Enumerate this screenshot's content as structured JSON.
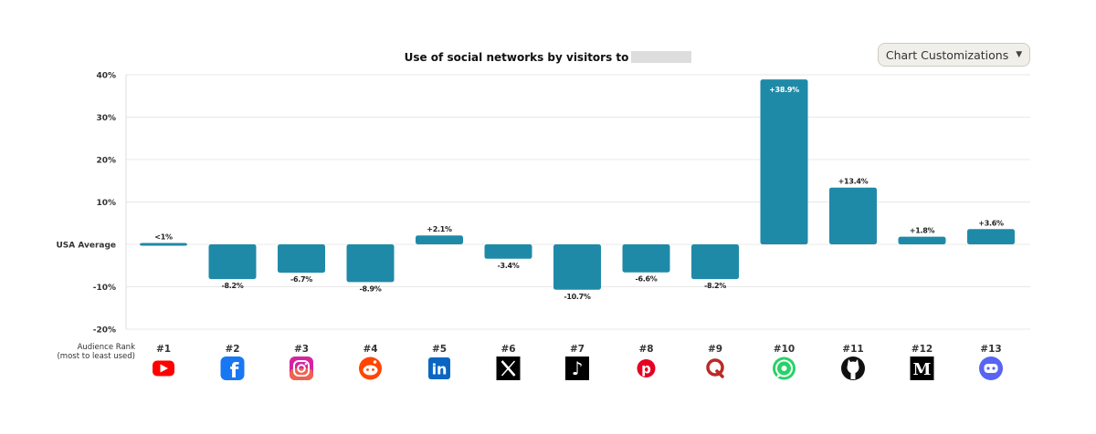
{
  "title": "Use of social networks by visitors to",
  "controls": {
    "customize_label": "Chart Customizations"
  },
  "rank_legend": {
    "line1": "Audience Rank",
    "line2": "(most to least used)"
  },
  "colors": {
    "bar": "#1f8aa8",
    "grid": "#e8e8e8",
    "text": "#222222"
  },
  "chart_data": {
    "type": "bar",
    "title": "Use of social networks by visitors to",
    "y_ticks": [
      {
        "value": 40,
        "label": "40%"
      },
      {
        "value": 30,
        "label": "30%"
      },
      {
        "value": 20,
        "label": "20%"
      },
      {
        "value": 10,
        "label": "10%"
      },
      {
        "value": 0,
        "label": "USA Average"
      },
      {
        "value": -10,
        "label": "-10%"
      },
      {
        "value": -20,
        "label": "-20%"
      }
    ],
    "ylim": [
      -20,
      40
    ],
    "grid": true,
    "categories": [
      "#1",
      "#2",
      "#3",
      "#4",
      "#5",
      "#6",
      "#7",
      "#8",
      "#9",
      "#10",
      "#11",
      "#12",
      "#13"
    ],
    "icons": [
      "youtube-icon",
      "facebook-icon",
      "instagram-icon",
      "reddit-icon",
      "linkedin-icon",
      "x-icon",
      "tiktok-icon",
      "pinterest-icon",
      "quora-icon",
      "whatsapp-icon",
      "github-icon",
      "medium-icon",
      "discord-icon"
    ],
    "values": [
      0.5,
      -8.2,
      -6.7,
      -8.9,
      2.1,
      -3.4,
      -10.7,
      -6.6,
      -8.2,
      38.9,
      13.4,
      1.8,
      3.6
    ],
    "labels": [
      "<1%",
      "-8.2%",
      "-6.7%",
      "-8.9%",
      "+2.1%",
      "-3.4%",
      "-10.7%",
      "-6.6%",
      "-8.2%",
      "+38.9%",
      "+13.4%",
      "+1.8%",
      "+3.6%"
    ]
  }
}
